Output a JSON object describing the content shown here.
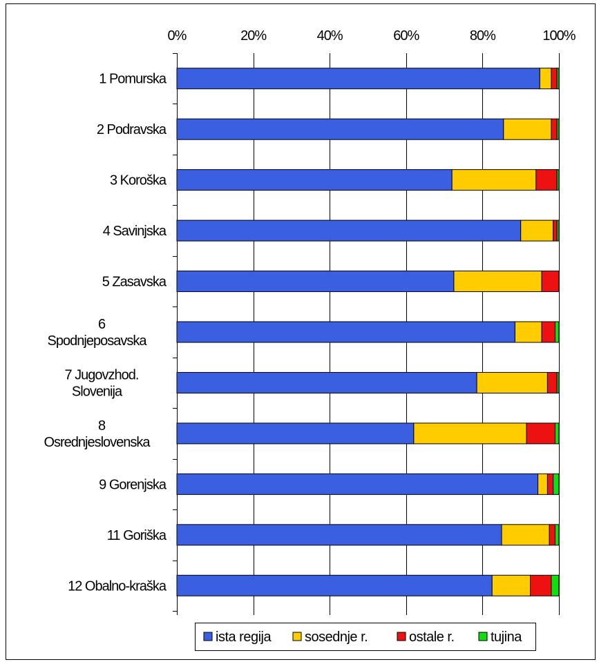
{
  "chart_data": {
    "type": "bar",
    "orientation": "horizontal",
    "stacked": "percent",
    "x_ticks": [
      "0%",
      "20%",
      "40%",
      "60%",
      "80%",
      "100%"
    ],
    "xlim": [
      0,
      100
    ],
    "grid": true,
    "legend_position": "bottom",
    "categories": [
      [
        "1  Pomurska"
      ],
      [
        "2  Podravska"
      ],
      [
        "3  Koroška"
      ],
      [
        "4  Savinjska"
      ],
      [
        "5  Zasavska"
      ],
      [
        "6",
        "Spodnjeposavska"
      ],
      [
        "7  Jugovzhod.",
        "Slovenija"
      ],
      [
        "8",
        "Osrednjeslovenska"
      ],
      [
        "9  Gorenjska"
      ],
      [
        "11  Goriška"
      ],
      [
        "12  Obalno-kraška"
      ]
    ],
    "series": [
      {
        "name": "ista regija",
        "color": "#3a5fe0",
        "values": [
          95.0,
          85.5,
          72.0,
          90.0,
          72.5,
          88.5,
          78.5,
          62.0,
          94.5,
          85.0,
          82.5
        ]
      },
      {
        "name": "sosednje r.",
        "color": "#ffcc00",
        "values": [
          3.0,
          12.5,
          22.0,
          8.5,
          23.0,
          7.0,
          18.5,
          29.5,
          2.5,
          12.5,
          10.0
        ]
      },
      {
        "name": "ostale r.",
        "color": "#ee1111",
        "values": [
          1.5,
          1.5,
          5.5,
          1.0,
          4.5,
          3.5,
          2.5,
          7.5,
          1.5,
          1.5,
          5.5
        ]
      },
      {
        "name": "tujina",
        "color": "#11dd11",
        "values": [
          0.5,
          0.5,
          0.5,
          0.5,
          0.0,
          1.0,
          0.5,
          1.0,
          1.5,
          1.0,
          2.0
        ]
      }
    ]
  }
}
